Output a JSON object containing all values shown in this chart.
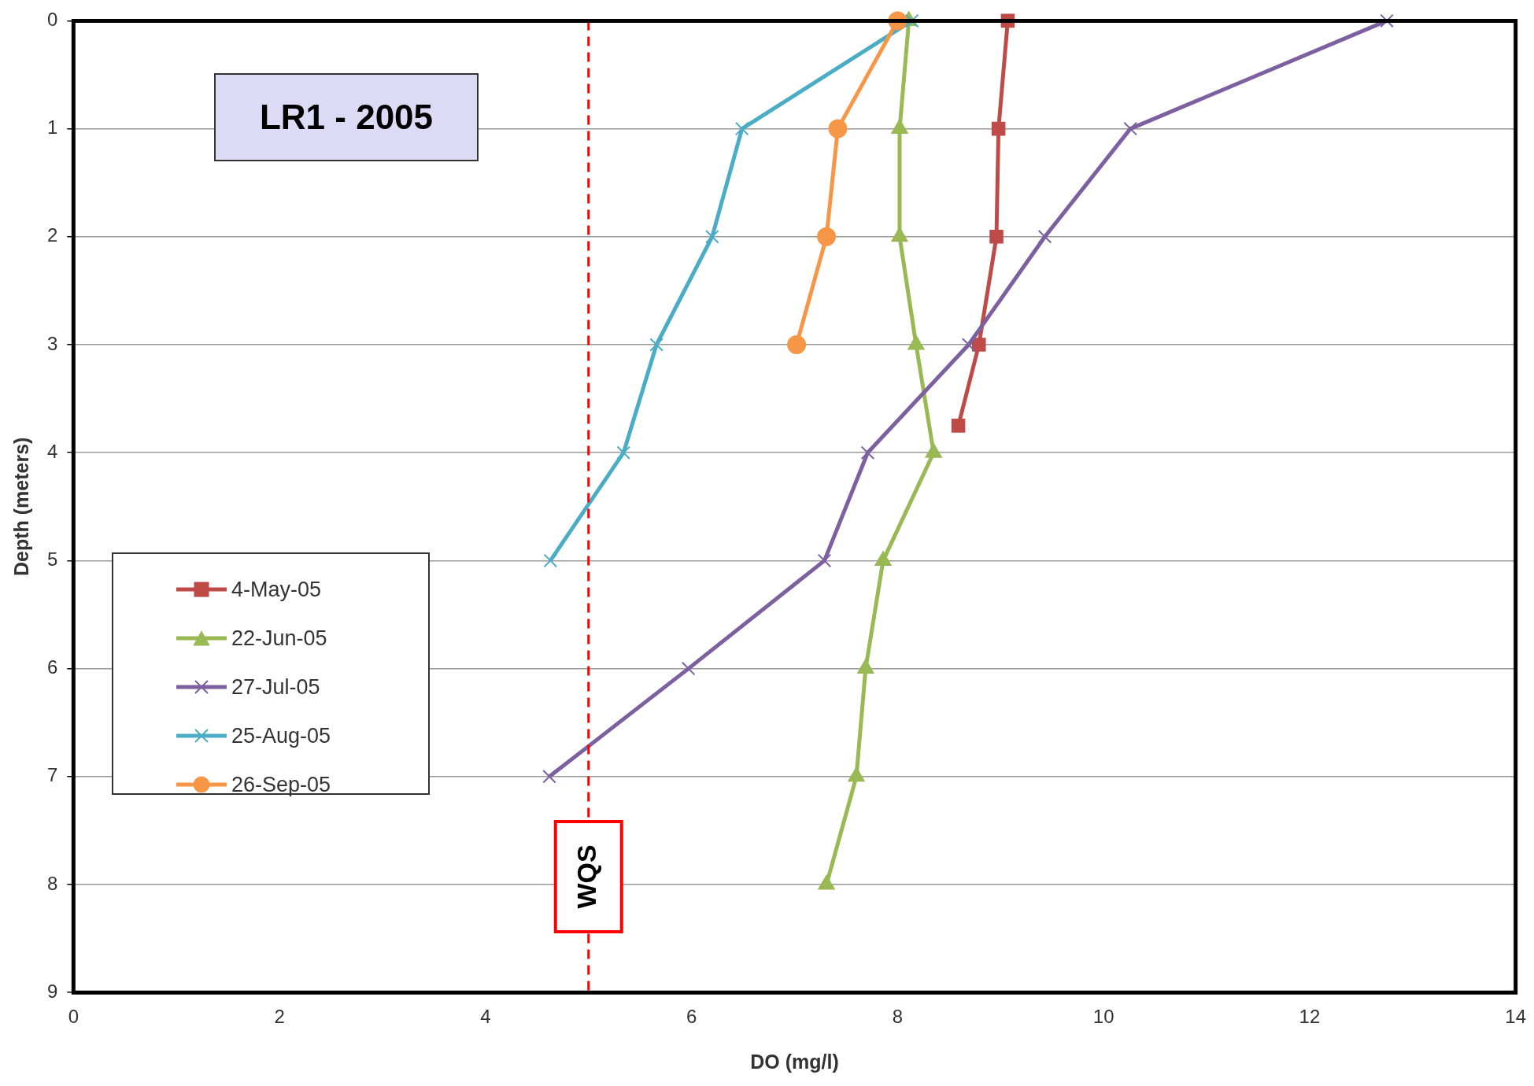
{
  "chart_data": {
    "type": "line",
    "title": "LR1 - 2005",
    "xlabel": "DO (mg/l)",
    "ylabel": "Depth (meters)",
    "xlim": [
      0,
      14
    ],
    "xticks": [
      0,
      2,
      4,
      6,
      8,
      10,
      12,
      14
    ],
    "ylim": [
      9,
      0
    ],
    "yticks": [
      0,
      1,
      2,
      3,
      4,
      5,
      6,
      7,
      8,
      9
    ],
    "grid": "y",
    "legend": "left",
    "series": [
      {
        "name": "4-May-05",
        "color": "#be4b48",
        "marker": "square",
        "x": [
          9.07,
          8.98,
          8.96,
          8.79,
          8.59
        ],
        "values": [
          0,
          1,
          2,
          3,
          3.75
        ]
      },
      {
        "name": "22-Jun-05",
        "color": "#98b954",
        "marker": "triangle",
        "x": [
          8.11,
          8.02,
          8.02,
          8.18,
          8.35,
          7.86,
          7.69,
          7.6,
          7.31
        ],
        "values": [
          0,
          1,
          2,
          3,
          4,
          5,
          6,
          7,
          8
        ]
      },
      {
        "name": "27-Jul-05",
        "color": "#7d60a0",
        "marker": "cross",
        "x": [
          12.75,
          10.26,
          9.43,
          8.69,
          7.71,
          7.29,
          5.97,
          4.62
        ],
        "values": [
          0,
          1,
          2,
          3,
          4,
          5,
          6,
          7
        ]
      },
      {
        "name": "25-Aug-05",
        "color": "#4bacc6",
        "marker": "cross",
        "x": [
          8.14,
          6.49,
          6.2,
          5.66,
          5.34,
          4.63
        ],
        "values": [
          0,
          1,
          2,
          3,
          4,
          5
        ]
      },
      {
        "name": "26-Sep-05",
        "color": "#f79646",
        "marker": "circle",
        "x": [
          8.0,
          7.42,
          7.31,
          7.02
        ],
        "values": [
          0,
          1,
          2,
          3
        ]
      }
    ],
    "ref_lines": [
      {
        "axis": "x",
        "value": 5,
        "label": "WQS",
        "color": "#ff0000",
        "line_style": "dashed"
      }
    ]
  }
}
